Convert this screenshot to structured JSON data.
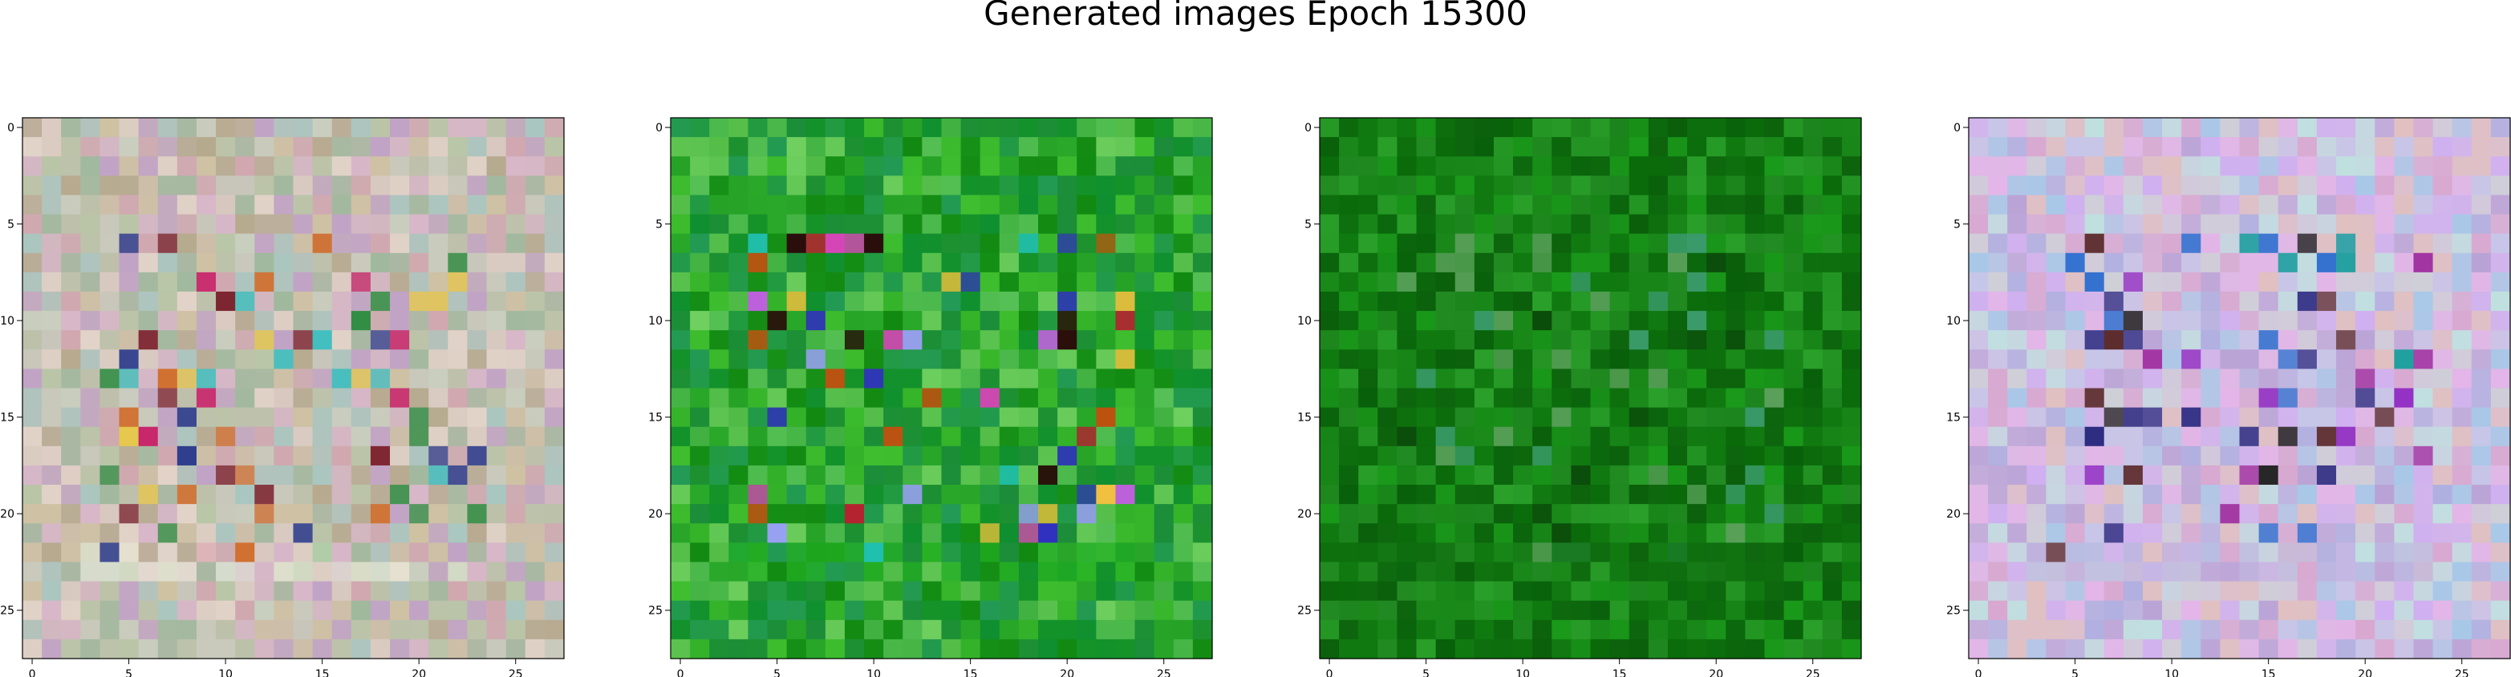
{
  "figure": {
    "title": "Generated images Epoch 15300"
  },
  "chart_data": [
    {
      "type": "heatmap",
      "title": "",
      "xlabel": "",
      "ylabel": "",
      "grid_size": [
        28,
        28
      ],
      "xlim": [
        -0.5,
        27.5
      ],
      "ylim": [
        27.5,
        -0.5
      ],
      "x_ticks": [
        0,
        5,
        10,
        15,
        20,
        25
      ],
      "y_ticks": [
        0,
        5,
        10,
        15,
        20,
        25
      ],
      "grid": false,
      "colors": {
        "base": "#c7b7b2",
        "palette": [
          "#d8b7c9",
          "#b9c6a7",
          "#cfc2a3",
          "#a9c7c0",
          "#c1a3c6",
          "#e2d3c8",
          "#b6aa8e",
          "#d1a7b0",
          "#9fb99d",
          "#c9cfbf"
        ],
        "accents": [
          "#c8246a",
          "#e6c84b",
          "#2a3a8c",
          "#2b8c3f",
          "#7a1f2b",
          "#d07030",
          "#3fbfbf"
        ],
        "band_color": "#e6e6d3"
      }
    },
    {
      "type": "heatmap",
      "title": "",
      "xlabel": "",
      "ylabel": "",
      "grid_size": [
        28,
        28
      ],
      "xlim": [
        -0.5,
        27.5
      ],
      "ylim": [
        27.5,
        -0.5
      ],
      "x_ticks": [
        0,
        5,
        10,
        15,
        20,
        25
      ],
      "y_ticks": [
        0,
        5,
        10,
        15,
        20,
        25
      ],
      "grid": false,
      "colors": {
        "base": "#1f9a1f",
        "palette": [
          "#2aa82a",
          "#1c8c3a",
          "#3fbf2f",
          "#0f8f2f",
          "#55c055",
          "#239a55",
          "#6fd05f",
          "#128a12"
        ],
        "accents": [
          "#cc1133",
          "#e040c0",
          "#c060e0",
          "#f0c040",
          "#3030c0",
          "#20c0b0",
          "#c05010",
          "#2a0a0a",
          "#a0a0ff"
        ],
        "band_color": "#22b022"
      }
    },
    {
      "type": "heatmap",
      "title": "",
      "xlabel": "",
      "ylabel": "",
      "grid_size": [
        28,
        28
      ],
      "xlim": [
        -0.5,
        27.5
      ],
      "ylim": [
        27.5,
        -0.5
      ],
      "x_ticks": [
        0,
        5,
        10,
        15,
        20,
        25
      ],
      "y_ticks": [
        0,
        5,
        10,
        15,
        20,
        25
      ],
      "grid": false,
      "colors": {
        "base": "#137a13",
        "palette": [
          "#0a6a0a",
          "#1a8a1a",
          "#0f7a0f",
          "#228b22",
          "#0b5f0b",
          "#1a9a1a",
          "#2aa02a",
          "#08600a"
        ],
        "accents": [
          "#3a9a6a",
          "#5aa05a",
          "#0a4a0a"
        ],
        "band_color": "#107010"
      }
    },
    {
      "type": "heatmap",
      "title": "",
      "xlabel": "",
      "ylabel": "",
      "grid_size": [
        28,
        28
      ],
      "xlim": [
        -0.5,
        27.5
      ],
      "ylim": [
        27.5,
        -0.5
      ],
      "x_ticks": [
        0,
        5,
        10,
        15,
        20,
        25
      ],
      "y_ticks": [
        0,
        5,
        10,
        15,
        20,
        25
      ],
      "grid": false,
      "colors": {
        "base": "#d6bfe0",
        "palette": [
          "#e3b5e8",
          "#c6c6e8",
          "#b9a3d6",
          "#d8a8d0",
          "#a8c8e8",
          "#cfcfd8",
          "#e0c0c0",
          "#c0e0e0",
          "#d0b0f0",
          "#b0b0e0"
        ],
        "accents": [
          "#8a20c0",
          "#2a2a80",
          "#20a0a0",
          "#3070d0",
          "#5a2a2a",
          "#202020",
          "#a030a0"
        ],
        "band_color": "#c0b8e0"
      }
    }
  ]
}
